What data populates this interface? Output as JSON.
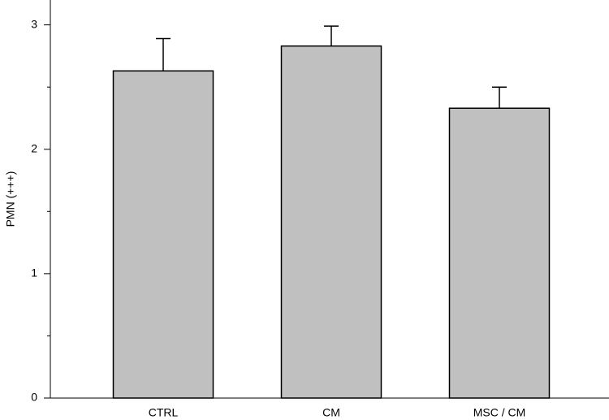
{
  "chart_data": {
    "type": "bar",
    "ylabel": "PMN (+++)",
    "categories": [
      "CTRL",
      "CM",
      "MSC / CM"
    ],
    "values": [
      2.63,
      2.83,
      2.33
    ],
    "errors": [
      0.26,
      0.16,
      0.17
    ],
    "color": "#c0c0c0",
    "ylim": [
      0,
      3.2
    ],
    "yticks": [
      0,
      1,
      2,
      3
    ],
    "yminorticks": [
      0.5,
      1.5,
      2.5
    ]
  }
}
